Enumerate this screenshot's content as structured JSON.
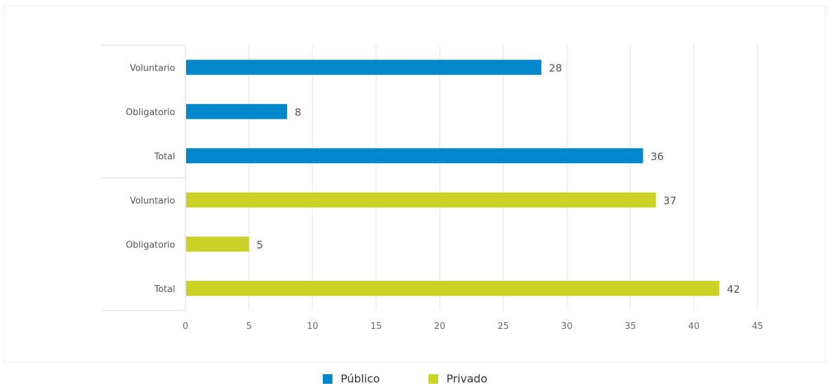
{
  "chart_data": {
    "type": "bar",
    "orientation": "horizontal",
    "title": "",
    "xlabel": "",
    "ylabel": "",
    "xlim": [
      0,
      45
    ],
    "x_ticks": [
      0,
      5,
      10,
      15,
      20,
      25,
      30,
      35,
      40,
      45
    ],
    "grid": true,
    "legend_position": "bottom",
    "groups": [
      {
        "series": "Público",
        "color": "#0087cc",
        "bars": [
          {
            "category": "Voluntario",
            "value": 28
          },
          {
            "category": "Obligatorio",
            "value": 8
          },
          {
            "category": "Total",
            "value": 36
          }
        ]
      },
      {
        "series": "Privado",
        "color": "#cbd226",
        "bars": [
          {
            "category": "Voluntario",
            "value": 37
          },
          {
            "category": "Obligatorio",
            "value": 5
          },
          {
            "category": "Total",
            "value": 42
          }
        ]
      }
    ],
    "legend": [
      {
        "name": "Público",
        "color": "#0087cc"
      },
      {
        "name": "Privado",
        "color": "#cbd226"
      }
    ]
  }
}
